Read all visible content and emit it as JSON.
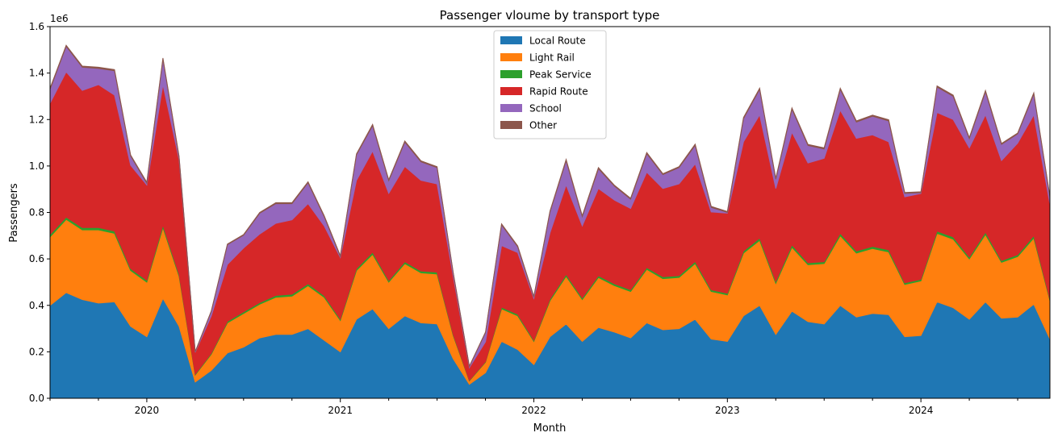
{
  "chart_data": {
    "type": "area",
    "stacked": true,
    "title": "Passenger vloume by transport type",
    "xlabel": "Month",
    "ylabel": "Passengers",
    "y_offset_label": "1e6",
    "ylim": [
      0,
      1.6
    ],
    "xlim": [
      "2019-07",
      "2024-09"
    ],
    "y_ticks": [
      {
        "value": 0.0,
        "label": "0.0"
      },
      {
        "value": 0.2,
        "label": "0.2"
      },
      {
        "value": 0.4,
        "label": "0.4"
      },
      {
        "value": 0.6,
        "label": "0.6"
      },
      {
        "value": 0.8,
        "label": "0.8"
      },
      {
        "value": 1.0,
        "label": "1.0"
      },
      {
        "value": 1.2,
        "label": "1.2"
      },
      {
        "value": 1.4,
        "label": "1.4"
      },
      {
        "value": 1.6,
        "label": "1.6"
      }
    ],
    "x_ticks": [
      {
        "month": "2020-01",
        "label": "2020"
      },
      {
        "month": "2021-01",
        "label": "2021"
      },
      {
        "month": "2022-01",
        "label": "2022"
      },
      {
        "month": "2023-01",
        "label": "2023"
      },
      {
        "month": "2024-01",
        "label": "2024"
      }
    ],
    "legend_position": "top-center",
    "x": [
      "2019-07",
      "2019-08",
      "2019-09",
      "2019-10",
      "2019-11",
      "2019-12",
      "2020-01",
      "2020-02",
      "2020-03",
      "2020-04",
      "2020-05",
      "2020-06",
      "2020-07",
      "2020-08",
      "2020-09",
      "2020-10",
      "2020-11",
      "2020-12",
      "2021-01",
      "2021-02",
      "2021-03",
      "2021-04",
      "2021-05",
      "2021-06",
      "2021-07",
      "2021-08",
      "2021-09",
      "2021-10",
      "2021-11",
      "2021-12",
      "2022-01",
      "2022-02",
      "2022-03",
      "2022-04",
      "2022-05",
      "2022-06",
      "2022-07",
      "2022-08",
      "2022-09",
      "2022-10",
      "2022-11",
      "2022-12",
      "2023-01",
      "2023-02",
      "2023-03",
      "2023-04",
      "2023-05",
      "2023-06",
      "2023-07",
      "2023-08",
      "2023-09",
      "2023-10",
      "2023-11",
      "2023-12",
      "2024-01",
      "2024-02",
      "2024-03",
      "2024-04",
      "2024-05",
      "2024-06",
      "2024-07",
      "2024-08",
      "2024-09"
    ],
    "series": [
      {
        "name": "Local Route",
        "color": "#1f77b4",
        "values": [
          0.4,
          0.455,
          0.425,
          0.41,
          0.415,
          0.31,
          0.265,
          0.43,
          0.31,
          0.07,
          0.12,
          0.195,
          0.22,
          0.26,
          0.275,
          0.275,
          0.3,
          0.25,
          0.2,
          0.34,
          0.385,
          0.3,
          0.355,
          0.325,
          0.32,
          0.17,
          0.06,
          0.11,
          0.245,
          0.21,
          0.145,
          0.265,
          0.32,
          0.245,
          0.305,
          0.285,
          0.26,
          0.325,
          0.295,
          0.3,
          0.34,
          0.255,
          0.245,
          0.355,
          0.4,
          0.275,
          0.375,
          0.33,
          0.32,
          0.4,
          0.35,
          0.365,
          0.36,
          0.265,
          0.27,
          0.415,
          0.39,
          0.34,
          0.415,
          0.345,
          0.35,
          0.405,
          0.255
        ]
      },
      {
        "name": "Light Rail",
        "color": "#ff7f0e",
        "values": [
          0.295,
          0.315,
          0.3,
          0.315,
          0.295,
          0.24,
          0.235,
          0.305,
          0.215,
          0.03,
          0.07,
          0.13,
          0.145,
          0.145,
          0.16,
          0.165,
          0.185,
          0.185,
          0.135,
          0.21,
          0.235,
          0.2,
          0.225,
          0.215,
          0.215,
          0.1,
          0.015,
          0.045,
          0.14,
          0.145,
          0.1,
          0.155,
          0.205,
          0.18,
          0.215,
          0.2,
          0.2,
          0.23,
          0.22,
          0.22,
          0.24,
          0.205,
          0.2,
          0.27,
          0.28,
          0.22,
          0.275,
          0.245,
          0.26,
          0.3,
          0.275,
          0.28,
          0.27,
          0.225,
          0.235,
          0.295,
          0.295,
          0.26,
          0.29,
          0.24,
          0.26,
          0.285,
          0.165
        ]
      },
      {
        "name": "Peak Service",
        "color": "#2ca02c",
        "values": [
          0.01,
          0.01,
          0.01,
          0.01,
          0.01,
          0.008,
          0.008,
          0.01,
          0.008,
          0.003,
          0.004,
          0.006,
          0.007,
          0.007,
          0.008,
          0.008,
          0.008,
          0.007,
          0.006,
          0.008,
          0.009,
          0.007,
          0.008,
          0.008,
          0.008,
          0.005,
          0.002,
          0.003,
          0.007,
          0.007,
          0.005,
          0.007,
          0.008,
          0.007,
          0.008,
          0.008,
          0.007,
          0.008,
          0.008,
          0.008,
          0.009,
          0.007,
          0.007,
          0.009,
          0.01,
          0.008,
          0.01,
          0.008,
          0.008,
          0.01,
          0.009,
          0.009,
          0.009,
          0.007,
          0.007,
          0.01,
          0.01,
          0.008,
          0.01,
          0.008,
          0.008,
          0.01,
          0.006
        ]
      },
      {
        "name": "Rapid Route",
        "color": "#d62728",
        "values": [
          0.565,
          0.625,
          0.59,
          0.615,
          0.585,
          0.445,
          0.41,
          0.605,
          0.495,
          0.095,
          0.16,
          0.245,
          0.275,
          0.295,
          0.31,
          0.32,
          0.345,
          0.3,
          0.265,
          0.38,
          0.435,
          0.375,
          0.41,
          0.39,
          0.38,
          0.25,
          0.055,
          0.085,
          0.265,
          0.265,
          0.18,
          0.285,
          0.385,
          0.31,
          0.375,
          0.36,
          0.35,
          0.41,
          0.38,
          0.395,
          0.42,
          0.335,
          0.345,
          0.47,
          0.53,
          0.4,
          0.485,
          0.43,
          0.445,
          0.53,
          0.485,
          0.48,
          0.465,
          0.37,
          0.37,
          0.51,
          0.505,
          0.47,
          0.505,
          0.43,
          0.48,
          0.52,
          0.41
        ]
      },
      {
        "name": "School",
        "color": "#9467bd",
        "values": [
          0.06,
          0.11,
          0.1,
          0.07,
          0.105,
          0.04,
          0.008,
          0.11,
          0.01,
          0.002,
          0.02,
          0.085,
          0.055,
          0.09,
          0.085,
          0.07,
          0.09,
          0.04,
          0.005,
          0.11,
          0.11,
          0.055,
          0.105,
          0.08,
          0.07,
          0.015,
          0.005,
          0.04,
          0.09,
          0.025,
          0.006,
          0.09,
          0.105,
          0.04,
          0.085,
          0.06,
          0.04,
          0.08,
          0.06,
          0.07,
          0.08,
          0.02,
          0.003,
          0.1,
          0.11,
          0.04,
          0.1,
          0.075,
          0.04,
          0.09,
          0.07,
          0.08,
          0.09,
          0.015,
          0.003,
          0.11,
          0.1,
          0.04,
          0.1,
          0.07,
          0.04,
          0.09,
          0.03
        ]
      },
      {
        "name": "Other",
        "color": "#8c564b",
        "values": [
          0.005,
          0.005,
          0.005,
          0.005,
          0.005,
          0.004,
          0.004,
          0.005,
          0.004,
          0.001,
          0.002,
          0.003,
          0.003,
          0.003,
          0.004,
          0.004,
          0.004,
          0.004,
          0.003,
          0.004,
          0.005,
          0.004,
          0.005,
          0.004,
          0.004,
          0.002,
          0.001,
          0.002,
          0.004,
          0.004,
          0.003,
          0.004,
          0.005,
          0.004,
          0.005,
          0.004,
          0.004,
          0.005,
          0.004,
          0.004,
          0.005,
          0.004,
          0.004,
          0.005,
          0.005,
          0.004,
          0.005,
          0.005,
          0.005,
          0.005,
          0.005,
          0.005,
          0.005,
          0.004,
          0.004,
          0.005,
          0.005,
          0.004,
          0.005,
          0.004,
          0.004,
          0.005,
          0.003
        ]
      }
    ]
  }
}
